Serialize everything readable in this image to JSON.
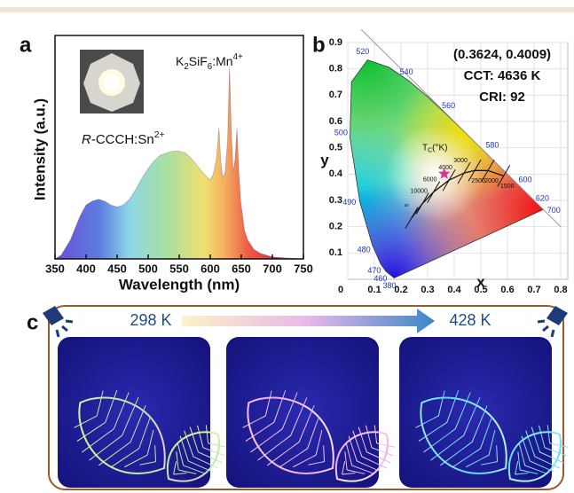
{
  "panel_labels": [
    "a",
    "b",
    "c"
  ],
  "chart_data": [
    {
      "type": "area",
      "xlabel": "Wavelength (nm)",
      "ylabel": "Intensity (a.u.)",
      "x": [
        350,
        360,
        375,
        390,
        400,
        410,
        420,
        430,
        440,
        450,
        460,
        470,
        480,
        490,
        500,
        510,
        520,
        530,
        540,
        550,
        560,
        570,
        580,
        590,
        600,
        605,
        610,
        614,
        617,
        620,
        624,
        628,
        631,
        634,
        637,
        640,
        643,
        646,
        649,
        655,
        660,
        670,
        680,
        690,
        700,
        720,
        750
      ],
      "values": [
        0,
        0.02,
        0.1,
        0.22,
        0.28,
        0.3,
        0.31,
        0.3,
        0.28,
        0.27,
        0.28,
        0.31,
        0.36,
        0.42,
        0.47,
        0.51,
        0.54,
        0.55,
        0.56,
        0.56,
        0.55,
        0.52,
        0.48,
        0.44,
        0.41,
        0.44,
        0.52,
        0.68,
        0.5,
        0.42,
        0.45,
        0.62,
        1.0,
        0.65,
        0.45,
        0.52,
        0.68,
        0.45,
        0.3,
        0.15,
        0.1,
        0.05,
        0.03,
        0.02,
        0.01,
        0.005,
        0
      ],
      "xlim": [
        350,
        750
      ],
      "ylim": [
        0,
        1
      ],
      "xticks": [
        350,
        400,
        450,
        500,
        550,
        600,
        650,
        700,
        750
      ],
      "annotations": [
        [
          "R",
          "-CCCH:Sn",
          "2+"
        ],
        [
          "K",
          "2",
          "SiF",
          "6",
          ":Mn",
          "4+"
        ]
      ]
    },
    {
      "type": "cie",
      "xlabel": "x",
      "ylabel": "y",
      "xlim": [
        0,
        0.8
      ],
      "ylim": [
        0,
        0.9
      ],
      "xticks": [
        0,
        0.1,
        0.2,
        0.3,
        0.4,
        0.5,
        0.6,
        0.7,
        0.8
      ],
      "yticks": [
        0.1,
        0.2,
        0.3,
        0.4,
        0.5,
        0.6,
        0.7,
        0.8,
        0.9
      ],
      "grid": true,
      "locus": {
        "labels": [
          380,
          460,
          470,
          480,
          490,
          500,
          null,
          520,
          null,
          540,
          null,
          560,
          null,
          580,
          null,
          600,
          620,
          700
        ],
        "x": [
          0.1741,
          0.144,
          0.1241,
          0.0913,
          0.0454,
          0.0082,
          0.0139,
          0.0743,
          0.1547,
          0.2296,
          0.3016,
          0.3731,
          0.4441,
          0.5125,
          0.5752,
          0.627,
          0.6915,
          0.7347
        ],
        "y": [
          0.005,
          0.0297,
          0.0578,
          0.1327,
          0.295,
          0.5384,
          0.7502,
          0.8338,
          0.8059,
          0.7543,
          0.6923,
          0.6245,
          0.5547,
          0.4866,
          0.4242,
          0.3725,
          0.3083,
          0.2653
        ]
      },
      "planckian": {
        "title": [
          "T",
          "C",
          "(°K)"
        ],
        "labels": [
          "∞",
          "10000",
          "6000",
          "4000",
          "3000",
          "2500",
          "2000",
          "1500"
        ],
        "x": [
          0.24,
          0.2806,
          0.3221,
          0.3805,
          0.4369,
          0.477,
          0.5266,
          0.5857
        ],
        "y": [
          0.234,
          0.2883,
          0.3318,
          0.3768,
          0.4041,
          0.4137,
          0.4133,
          0.3931
        ]
      },
      "point": {
        "x": 0.3624,
        "y": 0.4009,
        "color": "#e0309a"
      },
      "annotations": [
        "(0.3624, 0.4009)",
        "CCT: 4636 K",
        "CRI: 92"
      ]
    }
  ],
  "panel_c": {
    "start_label": "298 K",
    "end_label": "428 K"
  }
}
